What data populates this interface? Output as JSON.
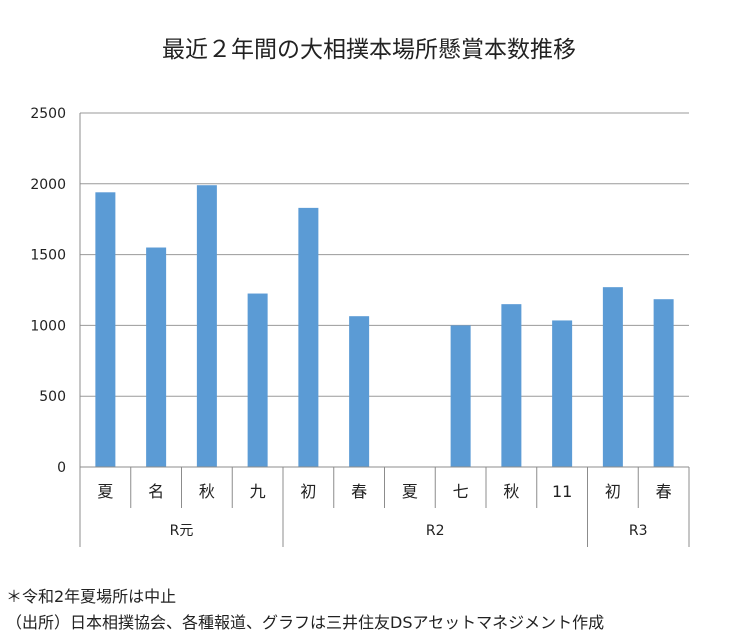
{
  "chart_data": {
    "type": "bar",
    "title": "最近２年間の大相撲本場所懸賞本数推移",
    "xlabel": "",
    "ylabel": "",
    "ylim": [
      0,
      2500
    ],
    "yticks": [
      "0",
      "500",
      "1000",
      "1500",
      "2000",
      "2500"
    ],
    "grid": true,
    "bar_color": "#5b9bd5",
    "categories": [
      "夏",
      "名",
      "秋",
      "九",
      "初",
      "春",
      "夏",
      "七",
      "秋",
      "11",
      "初",
      "春"
    ],
    "values": [
      1940,
      1550,
      1990,
      1225,
      1830,
      1065,
      0,
      1000,
      1150,
      1035,
      1270,
      1185
    ],
    "groups": [
      {
        "label": "R元",
        "start": 0,
        "count": 4
      },
      {
        "label": "R2",
        "start": 4,
        "count": 6
      },
      {
        "label": "R3",
        "start": 10,
        "count": 2
      }
    ]
  },
  "notes": {
    "line1": "＊令和2年夏場所は中止",
    "line2": "（出所）日本相撲協会、各種報道、グラフは三井住友DSアセットマネジメント作成"
  }
}
